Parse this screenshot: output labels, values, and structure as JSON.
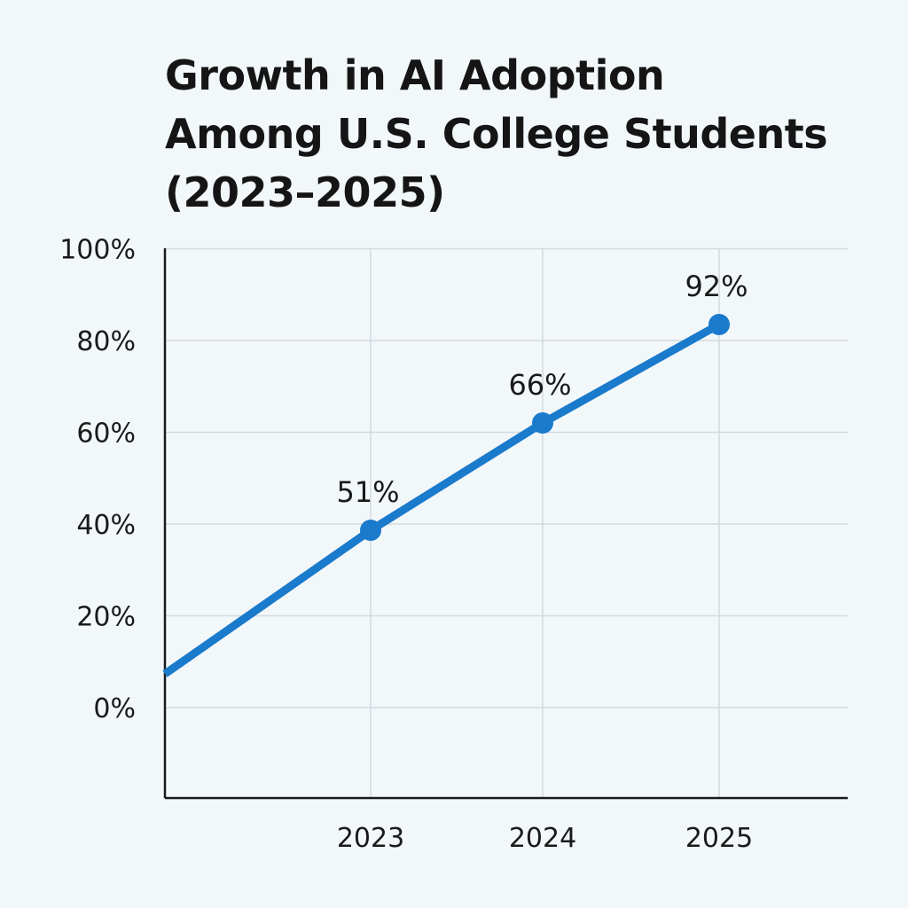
{
  "chart_data": {
    "type": "line",
    "title_lines": [
      "Growth in AI Adoption",
      "Among U.S. College Students",
      "(2023–2025)"
    ],
    "xlabel": "",
    "ylabel": "",
    "categories": [
      "2023",
      "2024",
      "2025"
    ],
    "y_ticks": [
      0,
      20,
      40,
      60,
      80,
      100
    ],
    "y_tick_labels": [
      "0%",
      "20%",
      "40%",
      "60%",
      "80%",
      "100%"
    ],
    "ylim": [
      -20,
      100
    ],
    "grid": true,
    "legend": "none",
    "series": [
      {
        "values": [
          51,
          66,
          92
        ],
        "data_labels": [
          "51%",
          "66%",
          "92%"
        ],
        "color": "#1a7acb"
      }
    ],
    "line_start_value": 8
  }
}
